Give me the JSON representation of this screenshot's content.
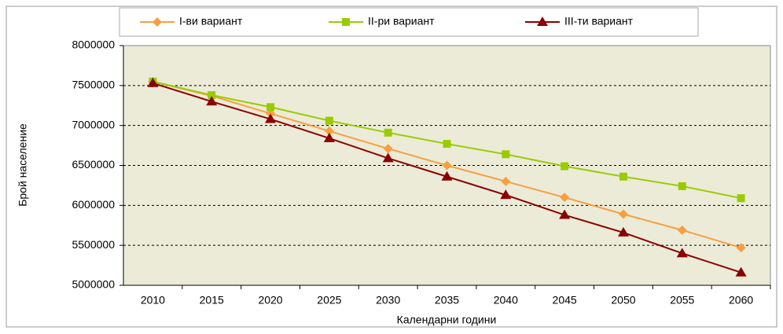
{
  "chart_data": {
    "type": "line",
    "x_label": "Календарни години",
    "y_label": "Брой население",
    "categories": [
      "2010",
      "2015",
      "2020",
      "2025",
      "2030",
      "2035",
      "2040",
      "2045",
      "2050",
      "2055",
      "2060"
    ],
    "series": [
      {
        "name": "I-ви вариант",
        "color": "#f7a040",
        "marker": "diamond",
        "values": [
          7550000,
          7370000,
          7150000,
          6930000,
          6710000,
          6500000,
          6300000,
          6100000,
          5890000,
          5690000,
          5470000
        ]
      },
      {
        "name": "II-ри вариант",
        "color": "#99cc00",
        "marker": "square",
        "values": [
          7550000,
          7380000,
          7230000,
          7060000,
          6910000,
          6770000,
          6640000,
          6490000,
          6360000,
          6240000,
          6090000
        ]
      },
      {
        "name": "III-ти вариант",
        "color": "#8b0000",
        "marker": "triangle",
        "values": [
          7530000,
          7300000,
          7080000,
          6840000,
          6590000,
          6360000,
          6130000,
          5880000,
          5660000,
          5400000,
          5160000
        ]
      }
    ],
    "ylim": [
      5000000,
      8000000
    ],
    "yticks": [
      5000000,
      5500000,
      6000000,
      6500000,
      7000000,
      7500000,
      8000000
    ],
    "grid": true,
    "legend": "top"
  }
}
